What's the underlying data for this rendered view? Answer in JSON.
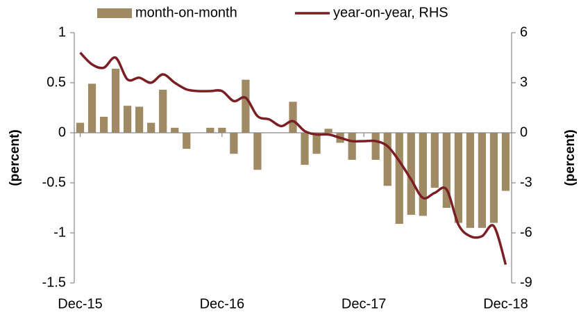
{
  "chart_data": {
    "type": "bar_line",
    "categories": [
      "Dec-15",
      null,
      null,
      null,
      null,
      null,
      null,
      null,
      null,
      null,
      null,
      null,
      "Dec-16",
      null,
      null,
      null,
      null,
      null,
      null,
      null,
      null,
      null,
      null,
      null,
      "Dec-17",
      null,
      null,
      null,
      null,
      null,
      null,
      null,
      null,
      null,
      null,
      null,
      "Dec-18"
    ],
    "series": [
      {
        "name": "month-on-month",
        "color": "#a08a64",
        "type": "bar",
        "values": [
          0.1,
          0.49,
          0.16,
          0.64,
          0.27,
          0.26,
          0.1,
          0.43,
          0.05,
          -0.16,
          0,
          0.05,
          0.05,
          -0.21,
          0.53,
          -0.37,
          0,
          0,
          0.31,
          -0.32,
          -0.21,
          0.04,
          -0.1,
          -0.27,
          0,
          -0.27,
          -0.53,
          -0.91,
          -0.82,
          -0.83,
          -0.55,
          -0.75,
          -0.9,
          -0.95,
          -0.95,
          -0.9,
          -0.58
        ]
      },
      {
        "name": "year-on-year, RHS",
        "color": "#7b1f24",
        "type": "line",
        "axis": "y2",
        "values": [
          4.8,
          4.1,
          3.9,
          4.5,
          3.2,
          3.3,
          3.0,
          3.5,
          3.0,
          2.6,
          2.5,
          2.5,
          2.5,
          1.9,
          2.1,
          1.0,
          0.8,
          0.4,
          0.7,
          0.1,
          -0.1,
          -0.1,
          -0.3,
          -0.5,
          -0.5,
          -0.5,
          -0.8,
          -1.7,
          -2.8,
          -3.9,
          -3.6,
          -3.4,
          -5.5,
          -6.2,
          -6.2,
          -5.6,
          -7.9
        ]
      }
    ],
    "ylabel": "(percent)",
    "y2label": "(percent)",
    "ylim": [
      -1.5,
      1
    ],
    "yticks": [
      -1.5,
      -1,
      -0.5,
      0,
      0.5,
      1
    ],
    "y2lim": [
      -9,
      6
    ],
    "y2ticks": [
      -9,
      -6,
      -3,
      0,
      3,
      6
    ],
    "legend": "top"
  }
}
